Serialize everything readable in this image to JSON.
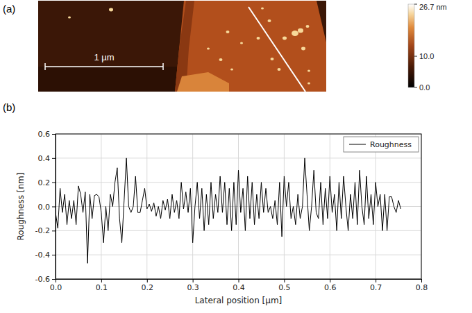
{
  "chart_data": [
    {
      "type": "image",
      "panel_label": "(a)",
      "scale_bar": {
        "label": "1 µm",
        "length": 1
      },
      "colorbar": {
        "range": [
          0,
          26.7
        ],
        "ticks": [
          {
            "value": 26.7,
            "label": "26.7 nm"
          },
          {
            "value": 10,
            "label": "10.0"
          },
          {
            "value": 0,
            "label": "0.0"
          }
        ]
      }
    },
    {
      "type": "line",
      "panel_label": "(b)",
      "xlabel": "Lateral position [µm]",
      "ylabel": "Roughness [nm]",
      "xlim": [
        0,
        0.8
      ],
      "ylim": [
        -0.6,
        0.6
      ],
      "xticks": [
        {
          "value": 0,
          "label": "0.0"
        },
        0.1,
        0.2,
        0.3,
        0.4,
        0.5,
        0.6,
        0.7,
        0.8
      ],
      "yticks": [
        -0.6,
        -0.4,
        -0.2,
        {
          "value": 0,
          "label": "0.0"
        },
        0.2,
        0.4,
        0.6
      ],
      "grid": true,
      "legend": "upper right",
      "x": [
        0,
        0.005,
        0.01,
        0.015,
        0.02,
        0.025,
        0.03,
        0.035,
        0.04,
        0.045,
        0.05,
        0.055,
        0.06,
        0.065,
        0.07,
        0.075,
        0.08,
        0.085,
        0.09,
        0.095,
        0.1,
        0.105,
        0.11,
        0.115,
        0.12,
        0.125,
        0.13,
        0.135,
        0.14,
        0.145,
        0.15,
        0.155,
        0.16,
        0.165,
        0.17,
        0.175,
        0.18,
        0.185,
        0.19,
        0.195,
        0.2,
        0.205,
        0.21,
        0.215,
        0.22,
        0.225,
        0.23,
        0.235,
        0.24,
        0.245,
        0.25,
        0.255,
        0.26,
        0.265,
        0.27,
        0.275,
        0.28,
        0.285,
        0.29,
        0.295,
        0.3,
        0.305,
        0.31,
        0.315,
        0.32,
        0.325,
        0.33,
        0.335,
        0.34,
        0.345,
        0.35,
        0.355,
        0.36,
        0.365,
        0.37,
        0.375,
        0.38,
        0.385,
        0.39,
        0.395,
        0.4,
        0.405,
        0.41,
        0.415,
        0.42,
        0.425,
        0.43,
        0.435,
        0.44,
        0.445,
        0.45,
        0.455,
        0.46,
        0.465,
        0.47,
        0.475,
        0.48,
        0.485,
        0.49,
        0.495,
        0.5,
        0.505,
        0.51,
        0.515,
        0.52,
        0.525,
        0.53,
        0.535,
        0.54,
        0.545,
        0.55,
        0.555,
        0.56,
        0.565,
        0.57,
        0.575,
        0.58,
        0.585,
        0.59,
        0.595,
        0.6,
        0.605,
        0.61,
        0.615,
        0.62,
        0.625,
        0.63,
        0.635,
        0.64,
        0.645,
        0.65,
        0.655,
        0.66,
        0.665,
        0.67,
        0.675,
        0.68,
        0.685,
        0.69,
        0.695,
        0.7,
        0.705,
        0.71,
        0.715,
        0.72,
        0.725,
        0.73,
        0.735,
        0.74,
        0.745,
        0.75,
        0.755
      ],
      "series": [
        {
          "name": "Roughness",
          "color": "#000000",
          "values": [
            -0.05,
            -0.18,
            0.15,
            -0.05,
            0.1,
            -0.15,
            0.05,
            -0.1,
            0.05,
            -0.15,
            0.17,
            0.1,
            -0.05,
            0.12,
            -0.47,
            0.1,
            -0.1,
            0.09,
            0.1,
            0.08,
            -0.05,
            -0.3,
            0,
            -0.2,
            0.1,
            0,
            0.2,
            0.32,
            -0.1,
            -0.3,
            0.05,
            0.4,
            0,
            -0.05,
            0,
            0.25,
            -0.05,
            -0.05,
            0.05,
            0.15,
            -0.02,
            0.02,
            -0.04,
            0.03,
            -0.08,
            0,
            -0.1,
            0.05,
            -0.03,
            0.06,
            -0.1,
            0.1,
            -0.05,
            0.05,
            -0.1,
            0.2,
            -0.02,
            0.12,
            -0.05,
            0.15,
            -0.3,
            0,
            0.2,
            -0.1,
            0.15,
            -0.2,
            0.1,
            -0.15,
            0.2,
            -0.1,
            0.1,
            -0.05,
            0.25,
            -0.05,
            0.2,
            -0.15,
            0.15,
            -0.2,
            0.2,
            -0.15,
            0.3,
            -0.05,
            0.15,
            -0.2,
            0.25,
            -0.1,
            0.2,
            -0.15,
            0.1,
            -0.1,
            0.2,
            -0.05,
            0.15,
            -0.05,
            0,
            -0.1,
            0.05,
            -0.15,
            0.2,
            -0.25,
            0.25,
            0,
            0.2,
            -0.1,
            0,
            -0.15,
            0.1,
            -0.1,
            0,
            0.4,
            0.1,
            -0.2,
            0,
            0.3,
            -0.05,
            -0.1,
            0.2,
            -0.15,
            0.15,
            -0.1,
            0.25,
            -0.05,
            0.1,
            -0.2,
            0.2,
            -0.1,
            0.25,
            0,
            -0.2,
            0.1,
            -0.1,
            0.2,
            -0.15,
            0.3,
            0,
            -0.15,
            0.25,
            -0.1,
            0.1,
            -0.15,
            0.2,
            0,
            0.1,
            -0.2,
            0.1,
            -0.2,
            0.08,
            0.08,
            0,
            -0.05,
            0.05,
            -0.02
          ]
        }
      ]
    }
  ]
}
